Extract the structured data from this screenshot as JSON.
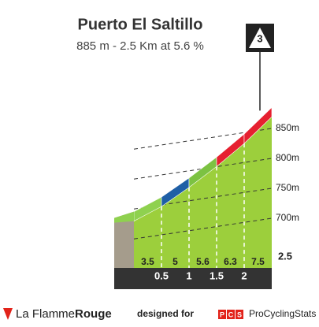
{
  "chart_data": {
    "type": "profile",
    "title": "Puerto El Saltillo",
    "subtitle": "885 m - 2.5 Km at 5.6 %",
    "category": "3",
    "summit": 885,
    "x": [
      0.5,
      1.0,
      1.5,
      2.0,
      2.5
    ],
    "gradients": [
      3.5,
      5.0,
      5.6,
      6.3,
      7.5
    ],
    "colors": [
      "#8fd14f",
      "#1f5fa6",
      "#7cc242",
      "#e62030",
      "#e62030"
    ],
    "face_color": "#9ccf3c",
    "ylim": [
      700,
      850
    ],
    "yticks": [
      {
        "value": 700,
        "label": "700m"
      },
      {
        "value": 750,
        "label": "750m"
      },
      {
        "value": 800,
        "label": "800m"
      },
      {
        "value": 850,
        "label": "850m"
      }
    ]
  },
  "footer": {
    "brand_1": "La Flamme",
    "brand_2": "Rouge",
    "designed": "designed for",
    "pcs": [
      "P",
      "C",
      "S"
    ],
    "pcs_name": "ProCyclingStats"
  }
}
